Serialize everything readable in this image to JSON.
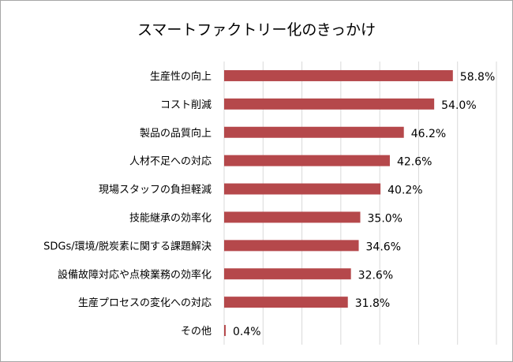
{
  "chart_data": {
    "type": "bar",
    "orientation": "horizontal",
    "title": "スマートファクトリー化のきっかけ",
    "categories": [
      "生産性の向上",
      "コスト削減",
      "製品の品質向上",
      "人材不足への対応",
      "現場スタッフの負担軽減",
      "技能継承の効率化",
      "SDGs/環境/脱炭素に関する課題解決",
      "設備故障対応や点検業務の効率化",
      "生産プロセスの変化への対応",
      "その他"
    ],
    "values": [
      58.8,
      54.0,
      46.2,
      42.6,
      40.2,
      35.0,
      34.6,
      32.6,
      31.8,
      0.4
    ],
    "value_labels": [
      "58.8%",
      "54.0%",
      "46.2%",
      "42.6%",
      "40.2%",
      "35.0%",
      "34.6%",
      "32.6%",
      "31.8%",
      "0.4%"
    ],
    "xlim": [
      0,
      70
    ],
    "grid": true,
    "legend": "none",
    "bar_color": "#b5484b",
    "grid_color": "#d9d9d9"
  }
}
